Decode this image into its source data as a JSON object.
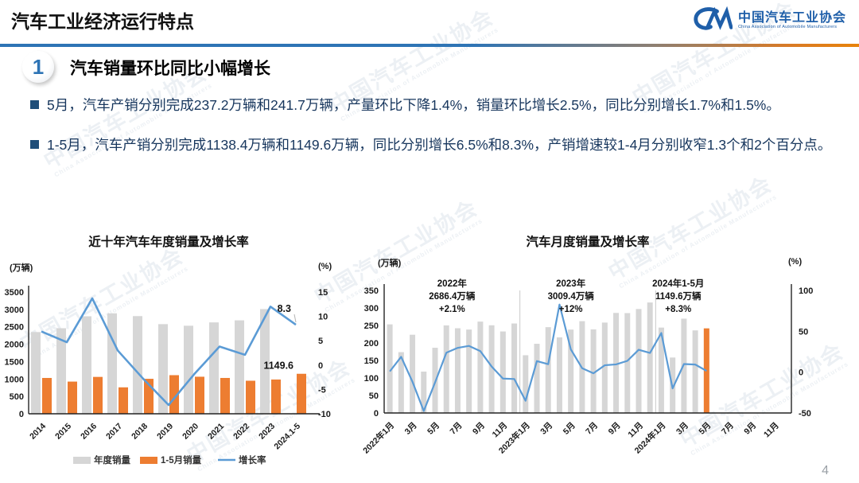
{
  "header": {
    "title": "汽车工业经济运行特点",
    "logo": {
      "mark": "CM-swoosh",
      "org_cn": "中国汽车工业协会",
      "org_en": "China Association of Automobile Manufacturers"
    }
  },
  "section": {
    "number": "1",
    "title": "汽车销量环比同比小幅增长"
  },
  "bullets": [
    "5月，汽车产销分别完成237.2万辆和241.7万辆，产量环比下降1.4%，销量环比增长2.5%，同比分别增长1.7%和1.5%。",
    "1-5月，汽车产销分别完成1138.4万辆和1149.6万辆，同比分别增长6.5%和8.3%，产销增速较1-4月分别收窄1.3个和2个百分点。"
  ],
  "watermark": {
    "cn": "中国汽车工业协会",
    "en": "China Association of Automobile Manufacturers"
  },
  "page": {
    "number": "4"
  },
  "colors": {
    "accent_blue": "#2E74B5",
    "bar_grey": "#D6D6D6",
    "bar_orange": "#ED7D31",
    "line_blue": "#5B9BD5",
    "text_navy": "#17365D",
    "bullet_square": "#1F4E79",
    "divider_orange": "#E8830A",
    "logo_blue": "#1F5FA9"
  },
  "chart_data": [
    {
      "type": "bar",
      "subtype": "grouped-bar-with-line",
      "title": "近十年汽车年度销量及增长率",
      "unit_left": "(万辆)",
      "unit_right": "(%)",
      "categories": [
        "2014",
        "2015",
        "2016",
        "2017",
        "2018",
        "2019",
        "2020",
        "2021",
        "2022",
        "2023",
        "2024.1-5"
      ],
      "series": [
        {
          "name": "年度销量",
          "type": "bar",
          "color": "#D6D6D6",
          "axis": "left",
          "values": [
            2349.2,
            2459.8,
            2802.8,
            2887.9,
            2808.1,
            2576.9,
            2531.1,
            2627.5,
            2686.4,
            3009.4,
            null
          ]
        },
        {
          "name": "1-5月销量",
          "type": "bar",
          "color": "#ED7D31",
          "axis": "left",
          "values": [
            1030,
            925,
            1060,
            760,
            1005,
            1110,
            1065,
            1030,
            950,
            985,
            1149.6
          ]
        },
        {
          "name": "增长率",
          "type": "line",
          "color": "#5B9BD5",
          "axis": "right",
          "values": [
            6.9,
            4.7,
            13.7,
            3.0,
            -2.8,
            -8.2,
            -1.9,
            3.8,
            2.1,
            12.0,
            8.3
          ]
        }
      ],
      "left_ylim": [
        0,
        3500
      ],
      "left_ticks": [
        3500,
        3000,
        2500,
        2000,
        1500,
        1000,
        500,
        0
      ],
      "right_ylim": [
        -10,
        15
      ],
      "right_ticks": [
        15,
        10,
        5,
        0,
        -5,
        -10
      ],
      "grid": false,
      "legend_position": "bottom",
      "legend": [
        "年度销量",
        "1-5月销量",
        "增长率"
      ],
      "point_labels": {
        "line_last": "8.3",
        "last_bar": "1149.6"
      }
    },
    {
      "type": "bar",
      "subtype": "monthly-bar-with-line",
      "title": "汽车月度销量及增长率",
      "unit_left": "(万辆)",
      "unit_right": "(%)",
      "months_span": 36,
      "x_tick_labels": [
        "2022年1月",
        "3月",
        "5月",
        "7月",
        "9月",
        "11月",
        "2023年1月",
        "3月",
        "5月",
        "7月",
        "9月",
        "11月",
        "2024年1月",
        "3月",
        "5月",
        "7月",
        "9月",
        "11月"
      ],
      "series": [
        {
          "name": "月度销量",
          "type": "bar",
          "color": "#D6D6D6",
          "axis": "left",
          "last_bar_color": "#ED7D31",
          "values": [
            253.1,
            173.7,
            223.4,
            118.1,
            186.2,
            250.2,
            242.0,
            238.3,
            261.0,
            250.5,
            232.8,
            255.6,
            164.9,
            197.6,
            245.1,
            215.9,
            238.2,
            262.2,
            238.8,
            258.2,
            285.8,
            285.3,
            297.0,
            315.6,
            243.9,
            158.4,
            269.4,
            235.9,
            241.7
          ]
        },
        {
          "name": "增长率",
          "type": "line",
          "color": "#5B9BD5",
          "axis": "right",
          "values": [
            0.9,
            18.7,
            -11.7,
            -47.6,
            -12.6,
            23.8,
            29.7,
            32.1,
            25.7,
            6.9,
            -7.9,
            -8.4,
            -35.0,
            13.5,
            9.7,
            82.7,
            27.9,
            4.8,
            -1.4,
            8.4,
            9.5,
            13.8,
            27.4,
            23.5,
            47.9,
            -19.9,
            9.9,
            9.3,
            1.5
          ]
        }
      ],
      "left_ylim": [
        0,
        350
      ],
      "left_ticks": [
        350,
        300,
        250,
        200,
        150,
        100,
        50,
        0
      ],
      "right_ylim": [
        -50,
        100
      ],
      "right_ticks": [
        100,
        50,
        0,
        -50
      ],
      "grid": false,
      "legend_position": "none",
      "section_dividers_at_month": [
        12,
        24
      ],
      "section_annotations": [
        {
          "lines": [
            "2022年",
            "2686.4万辆",
            "+2.1%"
          ]
        },
        {
          "lines": [
            "2023年",
            "3009.4万辆",
            "+12%"
          ]
        },
        {
          "lines": [
            "2024年1-5月",
            "1149.6万辆",
            "+8.3%"
          ]
        }
      ]
    }
  ]
}
